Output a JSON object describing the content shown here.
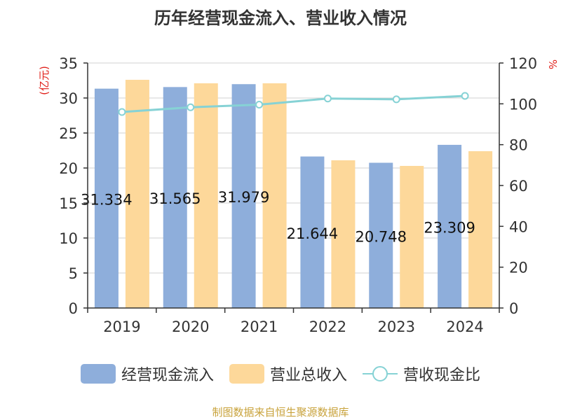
{
  "chart_data": {
    "type": "bar",
    "title": "历年经营现金流入、营业收入情况",
    "categories": [
      "2019",
      "2020",
      "2021",
      "2022",
      "2023",
      "2024"
    ],
    "left_axis": {
      "label": "(亿元)",
      "ylim": [
        0,
        35
      ],
      "ticks": [
        0,
        5,
        10,
        15,
        20,
        25,
        30,
        35
      ]
    },
    "right_axis": {
      "label": "%",
      "ylim": [
        0,
        120
      ],
      "ticks": [
        0,
        20,
        40,
        60,
        80,
        100,
        120
      ]
    },
    "series": [
      {
        "name": "经营现金流入",
        "type": "bar",
        "axis": "left",
        "color": "#8eaedb",
        "values": [
          31.334,
          31.565,
          31.979,
          21.644,
          20.748,
          23.309
        ],
        "data_labels": [
          "31.334",
          "31.565",
          "31.979",
          "21.644",
          "20.748",
          "23.309"
        ]
      },
      {
        "name": "营业总收入",
        "type": "bar",
        "axis": "left",
        "color": "#fdd89a",
        "values": [
          32.6,
          32.1,
          32.1,
          21.1,
          20.3,
          22.4
        ]
      },
      {
        "name": "营收现金比",
        "type": "line",
        "axis": "right",
        "color": "#86d2d5",
        "values": [
          96.0,
          98.3,
          99.6,
          102.6,
          102.2,
          103.9
        ]
      }
    ],
    "grid": true,
    "legend_position": "bottom"
  },
  "source": "制图数据来自恒生聚源数据库"
}
